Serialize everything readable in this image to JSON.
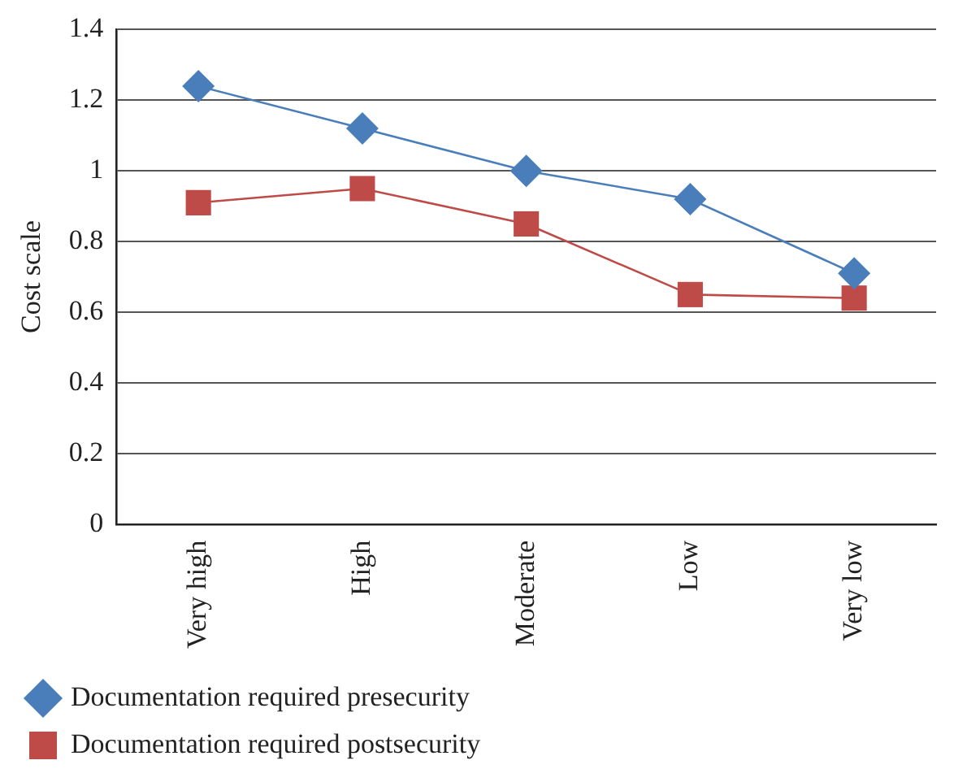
{
  "chart_data": {
    "type": "line",
    "ylabel": "Cost scale",
    "categories": [
      "Very high",
      "High",
      "Moderate",
      "Low",
      "Very low"
    ],
    "series": [
      {
        "name": "Documentation required presecurity",
        "color": "#4a7ebb",
        "marker": "diamond",
        "values": [
          1.24,
          1.12,
          1.0,
          0.92,
          0.71
        ]
      },
      {
        "name": "Documentation required postsecurity",
        "color": "#be4b48",
        "marker": "square",
        "values": [
          0.91,
          0.95,
          0.85,
          0.65,
          0.64
        ]
      }
    ],
    "ylim": [
      0,
      1.4
    ],
    "yticks": [
      0,
      0.2,
      0.4,
      0.6,
      0.8,
      1,
      1.2,
      1.4
    ],
    "grid": "y",
    "legend": "bottom left",
    "line_style": "solid"
  }
}
